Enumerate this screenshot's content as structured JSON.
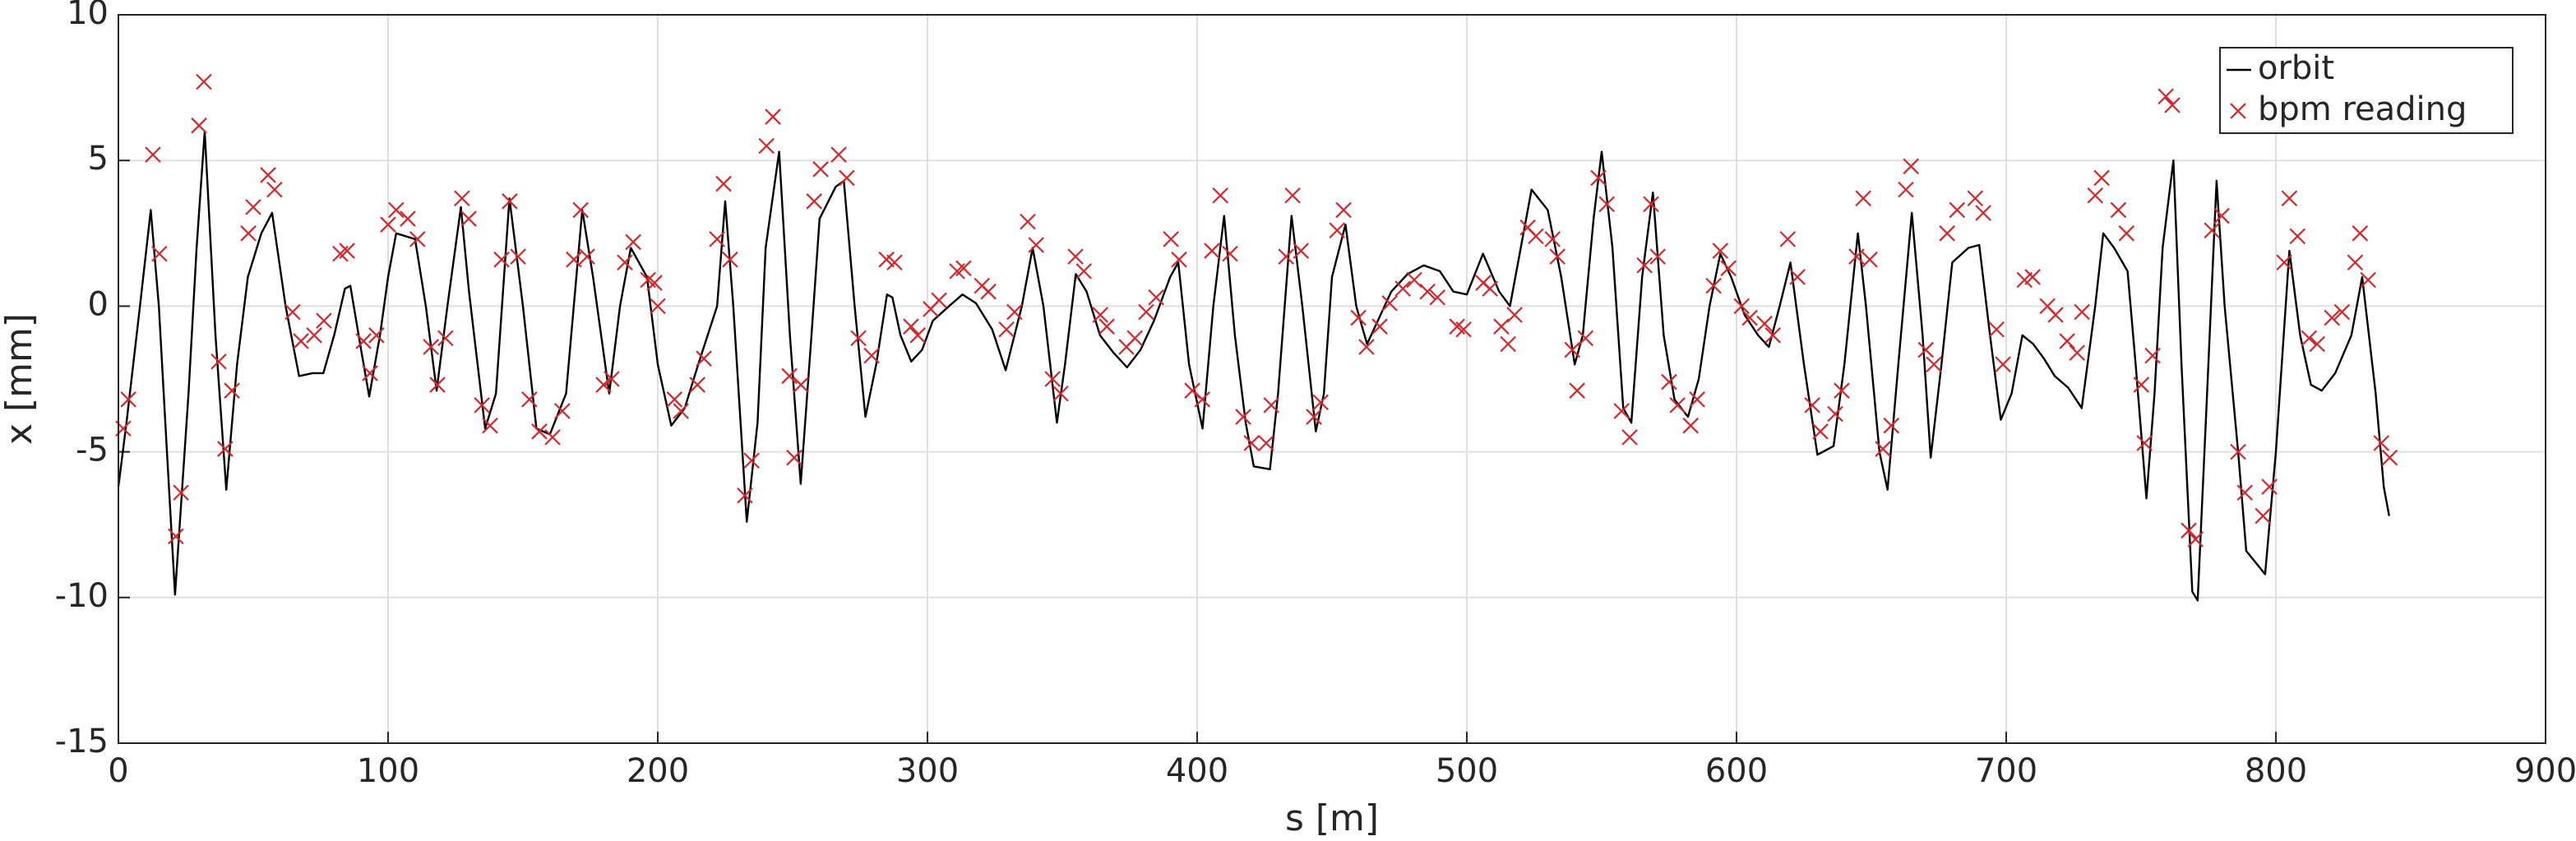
{
  "chart_data": {
    "type": "line",
    "xlabel": "s [m]",
    "ylabel": "x [mm]",
    "xlim": [
      0,
      900
    ],
    "xticks": [
      0,
      100,
      200,
      300,
      400,
      500,
      600,
      700,
      800,
      900
    ],
    "ylim": [
      -15,
      10
    ],
    "yticks": [
      -15,
      -10,
      -5,
      0,
      5,
      10
    ],
    "grid": true,
    "legend": "upper-right",
    "series": [
      {
        "name": "orbit",
        "type": "line",
        "color": "#000000",
        "x": [
          0,
          3,
          8,
          12,
          15,
          18,
          21,
          26,
          29,
          32,
          36,
          40,
          44,
          48,
          53,
          57,
          62,
          67,
          72,
          76,
          80,
          84,
          86,
          90,
          93,
          97,
          100,
          103,
          110,
          114,
          118,
          122,
          127,
          130,
          136,
          140,
          145,
          150,
          155,
          160,
          166,
          172,
          176,
          182,
          186,
          190,
          196,
          200,
          205,
          210,
          215,
          222,
          225,
          228,
          233,
          237,
          240,
          245,
          249,
          253,
          257,
          260,
          266,
          269,
          273,
          277,
          281,
          285,
          287,
          290,
          294,
          298,
          302,
          308,
          313,
          318,
          324,
          329,
          335,
          339,
          343,
          348,
          351,
          355,
          359,
          364,
          369,
          374,
          379,
          384,
          390,
          393,
          397,
          402,
          406,
          410,
          414,
          418,
          421,
          427,
          430,
          435,
          439,
          444,
          447,
          450,
          455,
          459,
          463,
          467,
          472,
          478,
          484,
          490,
          495,
          500,
          506,
          512,
          516,
          520,
          524,
          530,
          535,
          540,
          543,
          547,
          550,
          554,
          558,
          561,
          565,
          569,
          573,
          577,
          582,
          586,
          590,
          594,
          598,
          603,
          608,
          612,
          616,
          620,
          625,
          630,
          636,
          640,
          645,
          648,
          653,
          656,
          660,
          665,
          669,
          672,
          676,
          680,
          686,
          690,
          694,
          698,
          702,
          706,
          710,
          714,
          718,
          723,
          728,
          733,
          736,
          740,
          745,
          748,
          752,
          755,
          758,
          762,
          765,
          769,
          771,
          774,
          778,
          781,
          786,
          789,
          796,
          800,
          805,
          809,
          813,
          817,
          822,
          828,
          832,
          837,
          840,
          842
        ],
        "values": [
          -6.2,
          -4,
          0,
          3.3,
          0,
          -5,
          -9.9,
          -3,
          2,
          6,
          -1,
          -6.3,
          -2,
          1,
          2.5,
          3.2,
          0,
          -2.4,
          -2.3,
          -2.3,
          -1,
          0.6,
          0.7,
          -1.5,
          -3.1,
          -1,
          1,
          2.5,
          2.3,
          0,
          -2.9,
          0,
          3.4,
          0.5,
          -4.2,
          -3,
          3.7,
          0,
          -4.2,
          -4.4,
          -3,
          3.3,
          1,
          -3,
          0,
          2,
          1,
          -2,
          -4.1,
          -3.5,
          -2,
          0,
          3.6,
          0,
          -7.4,
          -4,
          2,
          5.3,
          -1,
          -6.1,
          -1,
          3,
          4.1,
          4.3,
          0,
          -3.8,
          -2,
          0.4,
          0.3,
          -1,
          -1.9,
          -1.5,
          -0.5,
          0,
          0.4,
          0.1,
          -0.8,
          -2.2,
          0,
          2,
          0,
          -4,
          -2,
          1.1,
          0.5,
          -1,
          -1.6,
          -2.1,
          -1.5,
          -0.5,
          1,
          1.5,
          -2,
          -4.2,
          0,
          3.1,
          -1,
          -4,
          -5.5,
          -5.6,
          -3,
          3.1,
          0,
          -4.3,
          -3,
          1,
          2.8,
          0,
          -1.3,
          -0.5,
          0.5,
          1.1,
          1.4,
          1.2,
          0.5,
          0.4,
          1.8,
          0.5,
          0,
          2,
          4,
          3.3,
          1,
          -2,
          -1,
          3,
          5.3,
          2,
          -3.5,
          -4,
          1,
          3.9,
          -1,
          -3.2,
          -3.8,
          -2.5,
          0,
          1.8,
          1,
          -0.3,
          -1,
          -1.4,
          0,
          1.5,
          -2,
          -5.1,
          -4.8,
          -2,
          2.5,
          0,
          -5,
          -6.3,
          -2,
          3.2,
          -1,
          -5.2,
          -2,
          1.5,
          2,
          2.1,
          -1,
          -3.9,
          -3,
          -1,
          -1.3,
          -1.8,
          -2.4,
          -2.8,
          -3.5,
          0,
          2.5,
          2,
          1.2,
          -2,
          -6.6,
          -3,
          2,
          5,
          -2,
          -9.8,
          -10.1,
          -4,
          4.3,
          0,
          -5,
          -8.4,
          -9.2,
          -5,
          1.9,
          -1,
          -2.7,
          -2.9,
          -2.3,
          -1,
          1,
          -3,
          -6.2,
          -7.2
        ]
      },
      {
        "name": "bpm reading",
        "type": "scatter",
        "color": "#d7262b",
        "x": [
          1.8,
          3.7,
          12.8,
          15.2,
          21.3,
          23.2,
          29.9,
          31.7,
          37.2,
          39.6,
          42.1,
          48.2,
          50,
          55.5,
          57.9,
          64.6,
          67.7,
          72.6,
          76.2,
          82.3,
          84.8,
          90.9,
          93.3,
          95.7,
          100,
          103,
          107.3,
          110.9,
          115.9,
          118.3,
          121.3,
          127.4,
          129.9,
          134.8,
          137.8,
          142.1,
          145.1,
          148.2,
          152.4,
          156.1,
          161,
          164.6,
          168.9,
          171.4,
          173.8,
          179.9,
          182.9,
          187.8,
          190.9,
          196.4,
          198.8,
          200,
          206.2,
          208.6,
          214.7,
          217.1,
          222,
          224.4,
          226.8,
          232.3,
          234.8,
          240.3,
          242.7,
          248.8,
          250.6,
          253.1,
          258,
          260.4,
          267.1,
          270.1,
          274.4,
          279.3,
          284.8,
          287.8,
          293.9,
          296.4,
          301.2,
          304.3,
          311,
          313.4,
          320.2,
          322.6,
          329.3,
          332.3,
          337.2,
          340.3,
          346.4,
          349.4,
          354.9,
          358,
          364.1,
          366.5,
          373.8,
          376.9,
          381.1,
          384.8,
          390.3,
          393.3,
          398.2,
          401.9,
          405.5,
          408.6,
          412.2,
          417.1,
          420.2,
          425.6,
          427.5,
          433,
          435.4,
          438.5,
          443.3,
          445.8,
          451.9,
          454.3,
          459.8,
          462.8,
          467.7,
          471.4,
          476.3,
          480.5,
          485.4,
          489.1,
          496.4,
          498.8,
          506.1,
          508.6,
          512.8,
          515.3,
          517.7,
          522.6,
          525.6,
          531.8,
          533.6,
          539.1,
          540.9,
          544,
          548.8,
          551.9,
          557.4,
          560.4,
          565.9,
          568.3,
          570.8,
          575,
          578.1,
          583,
          585.4,
          591.5,
          594,
          597,
          601.9,
          604.9,
          610.4,
          613.5,
          619,
          622.6,
          628.1,
          631.1,
          636.6,
          639,
          644.5,
          647,
          649.4,
          654.3,
          657.4,
          662.8,
          664.7,
          670.2,
          673.2,
          678.1,
          681.8,
          688.5,
          691.5,
          696.4,
          698.8,
          706.8,
          709.8,
          715.3,
          718.3,
          722.6,
          726.3,
          728.1,
          733,
          735.4,
          741.6,
          744.6,
          750.1,
          751.3,
          754.3,
          759.2,
          761.6,
          767.7,
          770.2,
          776.3,
          779.9,
          786,
          788.5,
          795.2,
          797.6,
          803.1,
          805,
          808,
          812.3,
          815.3,
          820.8,
          824.5,
          829.4,
          831.2,
          834.2,
          839.1,
          842.2
        ],
        "values": [
          -4.2,
          -3.2,
          5.2,
          1.8,
          -7.9,
          -6.4,
          6.2,
          7.7,
          -1.9,
          -4.9,
          -2.9,
          2.5,
          3.4,
          4.5,
          4,
          -0.2,
          -1.2,
          -1,
          -0.5,
          1.8,
          1.9,
          -1.2,
          -2.3,
          -1,
          2.8,
          3.3,
          3,
          2.3,
          -1.4,
          -2.7,
          -1.1,
          3.7,
          3,
          -3.4,
          -4.1,
          1.6,
          3.6,
          1.7,
          -3.2,
          -4.3,
          -4.5,
          -3.6,
          1.6,
          3.3,
          1.7,
          -2.7,
          -2.5,
          1.5,
          2.2,
          0.9,
          0.8,
          0,
          -3.2,
          -3.6,
          -2.7,
          -1.8,
          2.3,
          4.2,
          1.6,
          -6.5,
          -5.3,
          5.5,
          6.5,
          -2.4,
          -5.2,
          -2.7,
          3.6,
          4.7,
          5.2,
          4.4,
          -1.1,
          -1.7,
          1.6,
          1.5,
          -0.7,
          -1,
          -0.1,
          0.2,
          1.2,
          1.3,
          0.7,
          0.5,
          -0.8,
          -0.2,
          2.9,
          2.1,
          -2.5,
          -3,
          1.7,
          1.2,
          -0.3,
          -0.7,
          -1.4,
          -1.1,
          -0.2,
          0.3,
          2.3,
          1.6,
          -2.9,
          -3.2,
          1.9,
          3.8,
          1.8,
          -3.8,
          -4.7,
          -4.7,
          -3.4,
          1.7,
          3.8,
          1.9,
          -3.8,
          -3.3,
          2.6,
          3.3,
          -0.4,
          -1.4,
          -0.7,
          0.1,
          0.6,
          0.9,
          0.5,
          0.3,
          -0.7,
          -0.8,
          0.8,
          0.6,
          -0.7,
          -1.3,
          -0.3,
          2.7,
          2.4,
          2.3,
          1.7,
          -1.5,
          -2.9,
          -1.1,
          4.4,
          3.5,
          -3.6,
          -4.5,
          1.4,
          3.5,
          1.7,
          -2.6,
          -3.4,
          -4.1,
          -3.2,
          0.7,
          1.9,
          1.3,
          0,
          -0.4,
          -0.6,
          -1,
          2.3,
          1,
          -3.4,
          -4.3,
          -3.7,
          -2.9,
          1.7,
          3.7,
          1.6,
          -4.9,
          -4.1,
          4,
          4.8,
          -1.5,
          -2,
          2.5,
          3.3,
          3.7,
          3.2,
          -0.8,
          -2,
          0.9,
          1,
          0,
          -0.3,
          -1.2,
          -1.6,
          -0.2,
          3.8,
          4.4,
          3.3,
          2.5,
          -2.7,
          -4.7,
          -1.7,
          7.2,
          6.9,
          -7.7,
          -8,
          2.6,
          3.1,
          -5,
          -6.4,
          -7.2,
          -6.2,
          1.5,
          3.7,
          2.4,
          -1.1,
          -1.3,
          -0.4,
          -0.2,
          1.5,
          2.5,
          0.9,
          -4.7,
          -5.2
        ]
      }
    ]
  }
}
